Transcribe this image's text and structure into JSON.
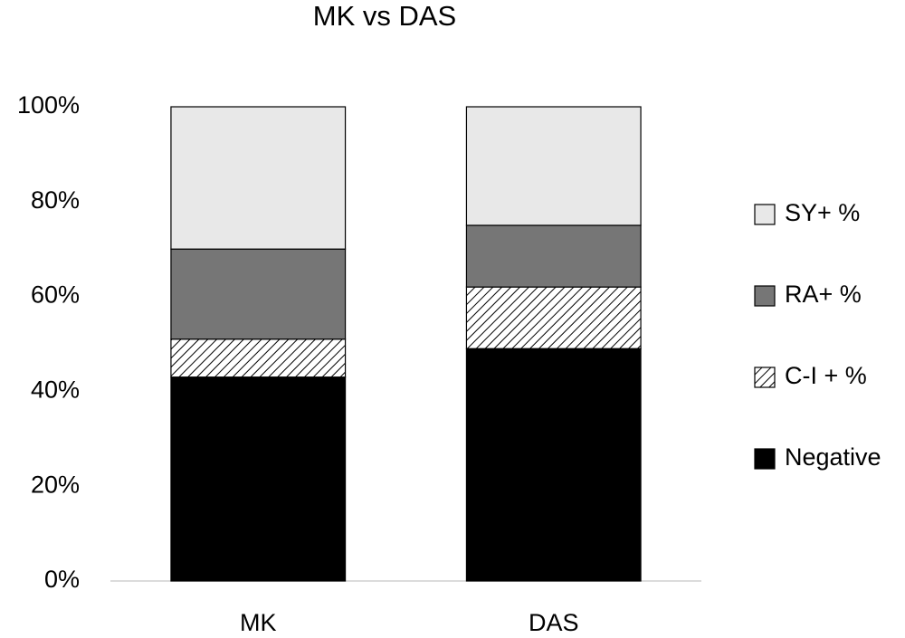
{
  "chart_data": {
    "type": "stacked-bar",
    "title": "MK vs DAS",
    "categories": [
      "MK",
      "DAS"
    ],
    "series": [
      {
        "name": "Negative",
        "color": "#000000",
        "values": [
          43,
          49
        ]
      },
      {
        "name": "C-I + %",
        "color": "#ffffff",
        "pattern": "hatch",
        "values": [
          8,
          13
        ]
      },
      {
        "name": "RA+ %",
        "color": "#767676",
        "values": [
          19,
          13
        ]
      },
      {
        "name": "SY+ %",
        "color": "#e8e8e8",
        "values": [
          30,
          25
        ]
      }
    ],
    "ylim": [
      0,
      100
    ],
    "yticks": [
      {
        "value": 0,
        "label": "0%"
      },
      {
        "value": 20,
        "label": "20%"
      },
      {
        "value": 40,
        "label": "40%"
      },
      {
        "value": 60,
        "label": "60%"
      },
      {
        "value": 80,
        "label": "80%"
      },
      {
        "value": 100,
        "label": "100%"
      }
    ],
    "grid": false,
    "legend": "right"
  }
}
